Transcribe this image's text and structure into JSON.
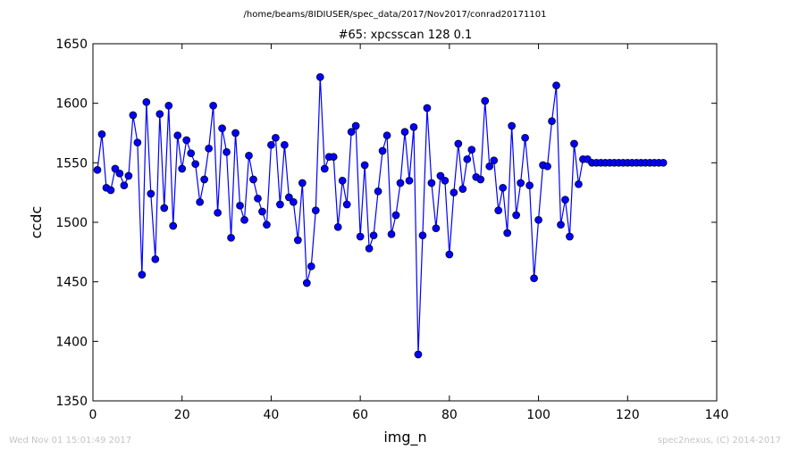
{
  "figure": {
    "suptitle": "/home/beams/8IDIUSER/spec_data/2017/Nov2017/conrad20171101",
    "footer_left": "Wed Nov 01 15:01:49 2017",
    "footer_right": "spec2nexus, (C) 2014-2017"
  },
  "colors": {
    "series": "#0000ff",
    "axes": "#000000",
    "background": "#ffffff",
    "footer": "#c4c4c4"
  },
  "chart_data": {
    "type": "line",
    "title": "#65: xpcsscan 128 0.1",
    "xlabel": "img_n",
    "ylabel": "ccdc",
    "xlim": [
      0,
      140
    ],
    "ylim": [
      1350,
      1650
    ],
    "xticks": [
      0,
      20,
      40,
      60,
      80,
      100,
      120,
      140
    ],
    "yticks": [
      1350,
      1400,
      1450,
      1500,
      1550,
      1600,
      1650
    ],
    "grid": false,
    "markers": "circle",
    "series": [
      {
        "x": [
          1,
          2,
          3,
          4,
          5,
          6,
          7,
          8,
          9,
          10,
          11,
          12,
          13,
          14,
          15,
          16,
          17,
          18,
          19,
          20,
          21,
          22,
          23,
          24,
          25,
          26,
          27,
          28,
          29,
          30,
          31,
          32,
          33,
          34,
          35,
          36,
          37,
          38,
          39,
          40,
          41,
          42,
          43,
          44,
          45,
          46,
          47,
          48,
          49,
          50,
          51,
          52,
          53,
          54,
          55,
          56,
          57,
          58,
          59,
          60,
          61,
          62,
          63,
          64,
          65,
          66,
          67,
          68,
          69,
          70,
          71,
          72,
          73,
          74,
          75,
          76,
          77,
          78,
          79,
          80,
          81,
          82,
          83,
          84,
          85,
          86,
          87,
          88,
          89,
          90,
          91,
          92,
          93,
          94,
          95,
          96,
          97,
          98,
          99,
          100,
          101,
          102,
          103,
          104,
          105,
          106,
          107,
          108,
          109,
          110,
          111,
          112,
          113,
          114,
          115,
          116,
          117,
          118,
          119,
          120,
          121,
          122,
          123,
          124,
          125,
          126,
          127,
          128
        ],
        "values": [
          1544,
          1574,
          1529,
          1527,
          1545,
          1541,
          1531,
          1539,
          1590,
          1567,
          1456,
          1601,
          1524,
          1469,
          1591,
          1512,
          1598,
          1497,
          1573,
          1545,
          1569,
          1558,
          1549,
          1517,
          1536,
          1562,
          1598,
          1508,
          1579,
          1559,
          1487,
          1575,
          1514,
          1502,
          1556,
          1536,
          1520,
          1509,
          1498,
          1565,
          1571,
          1515,
          1565,
          1521,
          1517,
          1485,
          1533,
          1449,
          1463,
          1510,
          1622,
          1545,
          1555,
          1555,
          1496,
          1535,
          1515,
          1576,
          1581,
          1488,
          1548,
          1478,
          1489,
          1526,
          1560,
          1573,
          1490,
          1506,
          1533,
          1576,
          1535,
          1580,
          1389,
          1489,
          1596,
          1533,
          1495,
          1539,
          1535,
          1473,
          1525,
          1566,
          1528,
          1553,
          1561,
          1538,
          1536,
          1602,
          1547,
          1552,
          1510,
          1529,
          1491,
          1581,
          1506,
          1533,
          1571,
          1531,
          1453,
          1502,
          1548,
          1547,
          1585,
          1615,
          1498,
          1519,
          1488,
          1566,
          1532,
          1553,
          1553,
          1550,
          1550,
          1550,
          1550,
          1550,
          1550,
          1550,
          1550,
          1550,
          1550,
          1550,
          1550,
          1550,
          1550,
          1550,
          1550,
          1550
        ]
      }
    ]
  }
}
